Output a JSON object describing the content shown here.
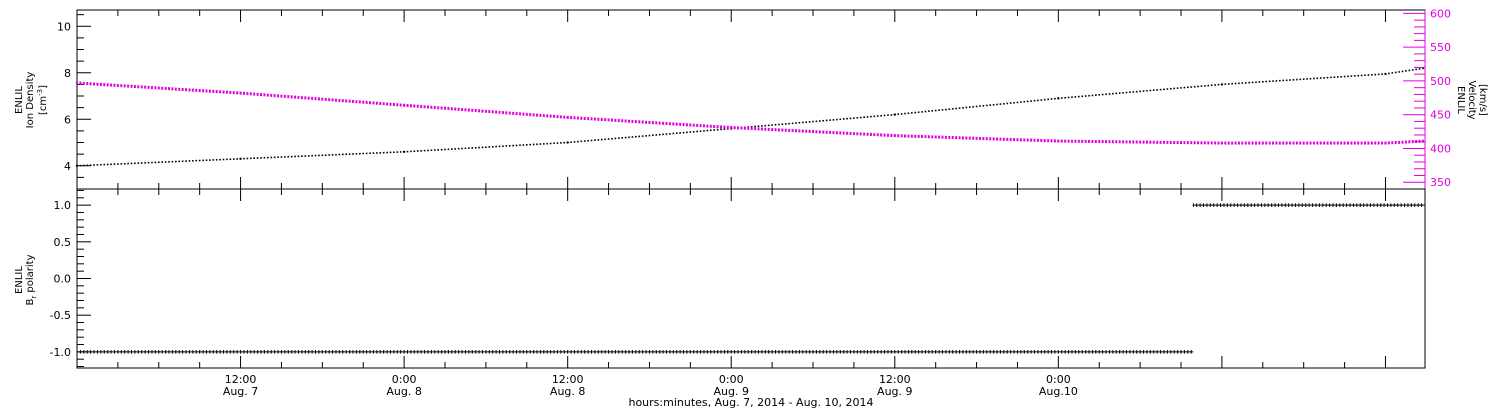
{
  "chart_data": [
    {
      "type": "scatter",
      "panel": "top",
      "title": "",
      "xlabel": "",
      "left_axis": {
        "label_lines": [
          "ENLIL",
          "Ion Density"
        ],
        "unit_base": "[cm",
        "unit_sup": "-3",
        "unit_end": "]",
        "ylim": [
          3.0,
          10.7
        ],
        "ticks": [
          4,
          6,
          8,
          10
        ],
        "tick_labels": [
          "4",
          "6",
          "8",
          "10"
        ]
      },
      "right_axis": {
        "label_lines": [
          "ENLIL",
          "Velocity",
          "[km/s]"
        ],
        "ylim": [
          340,
          605
        ],
        "ticks": [
          350,
          400,
          450,
          500,
          550,
          600
        ],
        "tick_labels": [
          "350",
          "400",
          "450",
          "500",
          "550",
          "600"
        ],
        "color": "#e000e0"
      },
      "series": [
        {
          "axis": "left",
          "color": "#000000",
          "x_hours": [
            0,
            12,
            24,
            36,
            48,
            60,
            72,
            84,
            96
          ],
          "values": [
            4.0,
            4.3,
            4.6,
            5.0,
            5.6,
            6.2,
            6.9,
            7.5,
            7.95
          ],
          "end_hours": 98.9,
          "end_value": 8.2
        },
        {
          "axis": "right",
          "color": "#e000e0",
          "x_hours": [
            0,
            12,
            24,
            36,
            48,
            60,
            72,
            84,
            96
          ],
          "values": [
            497,
            482,
            464,
            446,
            431,
            419,
            411,
            408,
            408
          ],
          "end_hours": 98.9,
          "end_value": 411
        }
      ]
    },
    {
      "type": "scatter",
      "panel": "bottom",
      "title": "",
      "xlabel": "hours:minutes, Aug.  7, 2014 - Aug. 10, 2014",
      "left_axis": {
        "label_lines": [
          "ENLIL"
        ],
        "br_base": "B",
        "br_sub": "r",
        "br_rest": " polarity",
        "ylim": [
          -1.22,
          1.22
        ],
        "ticks": [
          -1.0,
          -0.5,
          0.0,
          0.5,
          1.0
        ],
        "tick_labels": [
          "-1.0",
          "-0.5",
          "0.0",
          "0.5",
          "1.0"
        ]
      },
      "series": [
        {
          "color": "#000000",
          "segments": [
            {
              "x_start_hours": 0,
              "x_end_hours": 81.9,
              "value": -1
            },
            {
              "x_start_hours": 81.9,
              "x_end_hours": 98.9,
              "value": 1
            }
          ]
        }
      ]
    }
  ],
  "x_axis": {
    "range_hours": [
      0,
      98.9
    ],
    "major_ticks_hours": [
      12,
      24,
      36,
      48,
      60,
      72,
      84
    ],
    "tick_time_labels": [
      "12:00",
      "0:00",
      "12:00",
      "0:00",
      "12:00",
      "0:00"
    ],
    "tick_date_labels": [
      "Aug. 7",
      "Aug. 8",
      "Aug. 8",
      "Aug. 9",
      "Aug. 9",
      "Aug.10"
    ],
    "label_ticks_hours": [
      12,
      24,
      36,
      48,
      60,
      72
    ]
  }
}
